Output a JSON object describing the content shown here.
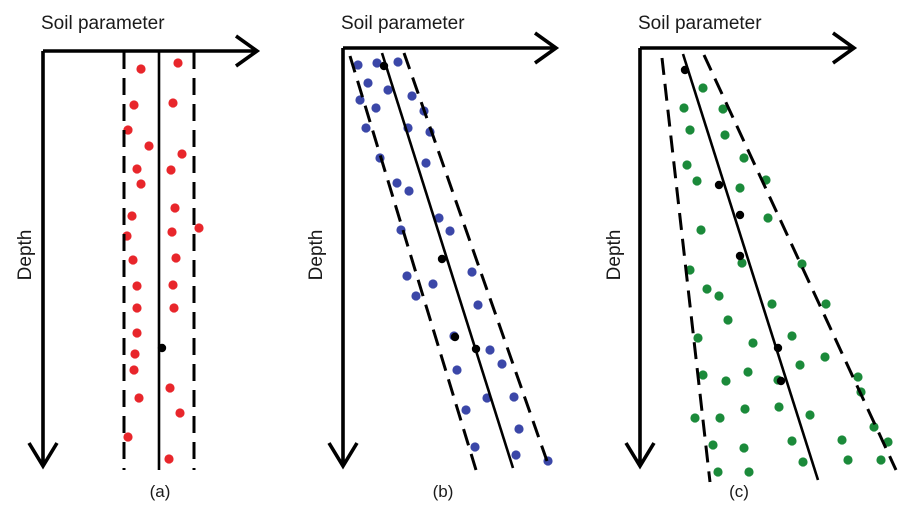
{
  "panels": [
    {
      "id": "a",
      "x_axis_label": "Soil parameter",
      "y_axis_label": "Depth",
      "caption": "(a)",
      "point_color": "#e8262b",
      "trend": "constant mean with depth, constant scatter band",
      "point_count": 26
    },
    {
      "id": "b",
      "x_axis_label": "Soil parameter",
      "y_axis_label": "Depth",
      "caption": "(b)",
      "point_color": "#3b47a8",
      "trend": "mean increases linearly with depth, constant scatter band",
      "point_count": 30
    },
    {
      "id": "c",
      "x_axis_label": "Soil parameter",
      "y_axis_label": "Depth",
      "caption": "(c)",
      "point_color": "#1b8a3a",
      "trend": "mean increases linearly with depth, scatter band widens with depth",
      "point_count": 34
    }
  ],
  "colors": {
    "lines": "#000000",
    "mean_points": "#000000"
  }
}
